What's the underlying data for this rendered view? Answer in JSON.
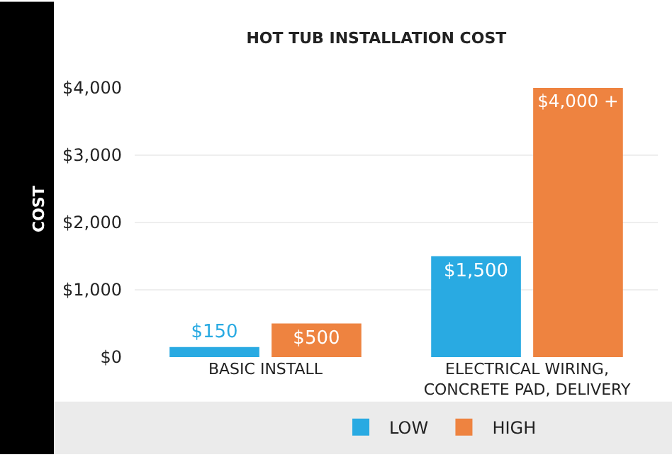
{
  "chart_data": {
    "type": "bar",
    "title": "HOT TUB INSTALLATION COST",
    "ylabel": "COST",
    "categories": [
      "BASIC INSTALL",
      "ELECTRICAL WIRING, CONCRETE PAD, DELIVERY"
    ],
    "series": [
      {
        "name": "LOW",
        "color": "#29aae2",
        "values": [
          150,
          1500
        ],
        "value_labels": [
          "$150",
          "$1,500"
        ]
      },
      {
        "name": "HIGH",
        "color": "#ee8340",
        "values": [
          500,
          4000
        ],
        "value_labels": [
          "$500",
          "$4,000 +"
        ]
      }
    ],
    "ylim": [
      0,
      4000
    ],
    "yticks": [
      {
        "value": 0,
        "label": "$0"
      },
      {
        "value": 1000,
        "label": "$1,000"
      },
      {
        "value": 2000,
        "label": "$2,000"
      },
      {
        "value": 3000,
        "label": "$3,000"
      },
      {
        "value": 4000,
        "label": "$4,000"
      }
    ],
    "grid": "y",
    "legend": "bottom"
  }
}
